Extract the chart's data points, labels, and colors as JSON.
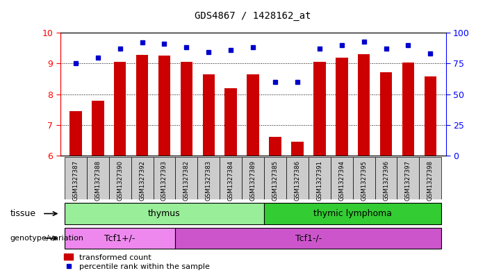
{
  "title": "GDS4867 / 1428162_at",
  "samples": [
    "GSM1327387",
    "GSM1327388",
    "GSM1327390",
    "GSM1327392",
    "GSM1327393",
    "GSM1327382",
    "GSM1327383",
    "GSM1327384",
    "GSM1327389",
    "GSM1327385",
    "GSM1327386",
    "GSM1327391",
    "GSM1327394",
    "GSM1327395",
    "GSM1327396",
    "GSM1327397",
    "GSM1327398"
  ],
  "red_values": [
    7.45,
    7.78,
    9.05,
    9.28,
    9.25,
    9.05,
    8.65,
    8.2,
    8.65,
    6.6,
    6.45,
    9.05,
    9.2,
    9.3,
    8.72,
    9.02,
    8.58
  ],
  "blue_values": [
    75,
    80,
    87,
    92,
    91,
    88,
    84,
    86,
    88,
    60,
    60,
    87,
    90,
    93,
    87,
    90,
    83
  ],
  "ylim_left": [
    6,
    10
  ],
  "ylim_right": [
    0,
    100
  ],
  "yticks_left": [
    6,
    7,
    8,
    9,
    10
  ],
  "yticks_right": [
    0,
    25,
    50,
    75,
    100
  ],
  "tissue_groups": [
    {
      "label": "thymus",
      "start": 0,
      "end": 8,
      "color": "#99EE99"
    },
    {
      "label": "thymic lymphoma",
      "start": 9,
      "end": 16,
      "color": "#33CC33"
    }
  ],
  "genotype_groups": [
    {
      "label": "Tcf1+/-",
      "start": 0,
      "end": 4,
      "color": "#EE88EE"
    },
    {
      "label": "Tcf1-/-",
      "start": 5,
      "end": 16,
      "color": "#CC55CC"
    }
  ],
  "tissue_row_label": "tissue",
  "genotype_row_label": "genotype/variation",
  "legend_red": "transformed count",
  "legend_blue": "percentile rank within the sample",
  "bar_color": "#CC0000",
  "dot_color": "#0000CC",
  "tick_area_color": "#CCCCCC"
}
